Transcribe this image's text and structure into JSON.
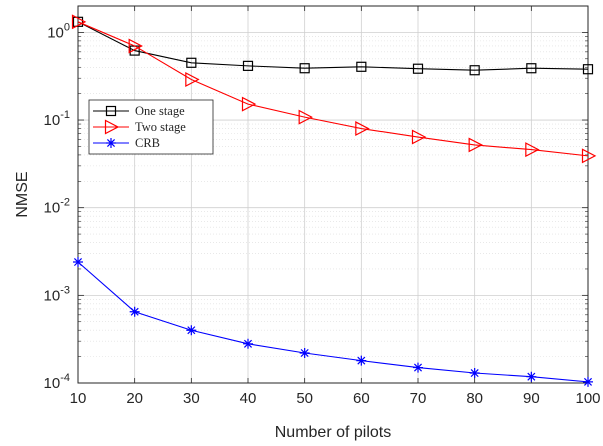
{
  "chart_data": {
    "type": "line",
    "title": "",
    "xlabel": "Number of pilots",
    "ylabel": "NMSE",
    "xscale": "linear",
    "yscale": "log",
    "xlim": [
      10,
      100
    ],
    "ylim": [
      0.0001,
      2
    ],
    "grid": true,
    "minor_grid": true,
    "legend_position": "upper-left",
    "x_ticks": [
      "10",
      "20",
      "30",
      "40",
      "50",
      "60",
      "70",
      "80",
      "90",
      "100"
    ],
    "y_ticks": [
      {
        "value": 0.0001,
        "base": "10",
        "exp": "-4"
      },
      {
        "value": 0.001,
        "base": "10",
        "exp": "-3"
      },
      {
        "value": 0.01,
        "base": "10",
        "exp": "-2"
      },
      {
        "value": 0.1,
        "base": "10",
        "exp": "-1"
      },
      {
        "value": 1,
        "base": "10",
        "exp": "0"
      }
    ],
    "x": [
      10,
      20,
      30,
      40,
      50,
      60,
      70,
      80,
      90,
      100
    ],
    "series": [
      {
        "name": "One stage",
        "color": "#000000",
        "marker": "square",
        "values": [
          1.32,
          0.62,
          0.45,
          0.415,
          0.39,
          0.405,
          0.385,
          0.37,
          0.39,
          0.38
        ]
      },
      {
        "name": "Two stage",
        "color": "#ff0000",
        "marker": "triangle-right",
        "values": [
          1.32,
          0.7,
          0.29,
          0.152,
          0.108,
          0.08,
          0.064,
          0.052,
          0.046,
          0.039
        ]
      },
      {
        "name": "CRB",
        "color": "#0000ff",
        "marker": "asterisk",
        "values": [
          0.0024,
          0.00065,
          0.0004,
          0.00028,
          0.00022,
          0.00018,
          0.00015,
          0.00013,
          0.000118,
          0.000103
        ]
      }
    ]
  }
}
